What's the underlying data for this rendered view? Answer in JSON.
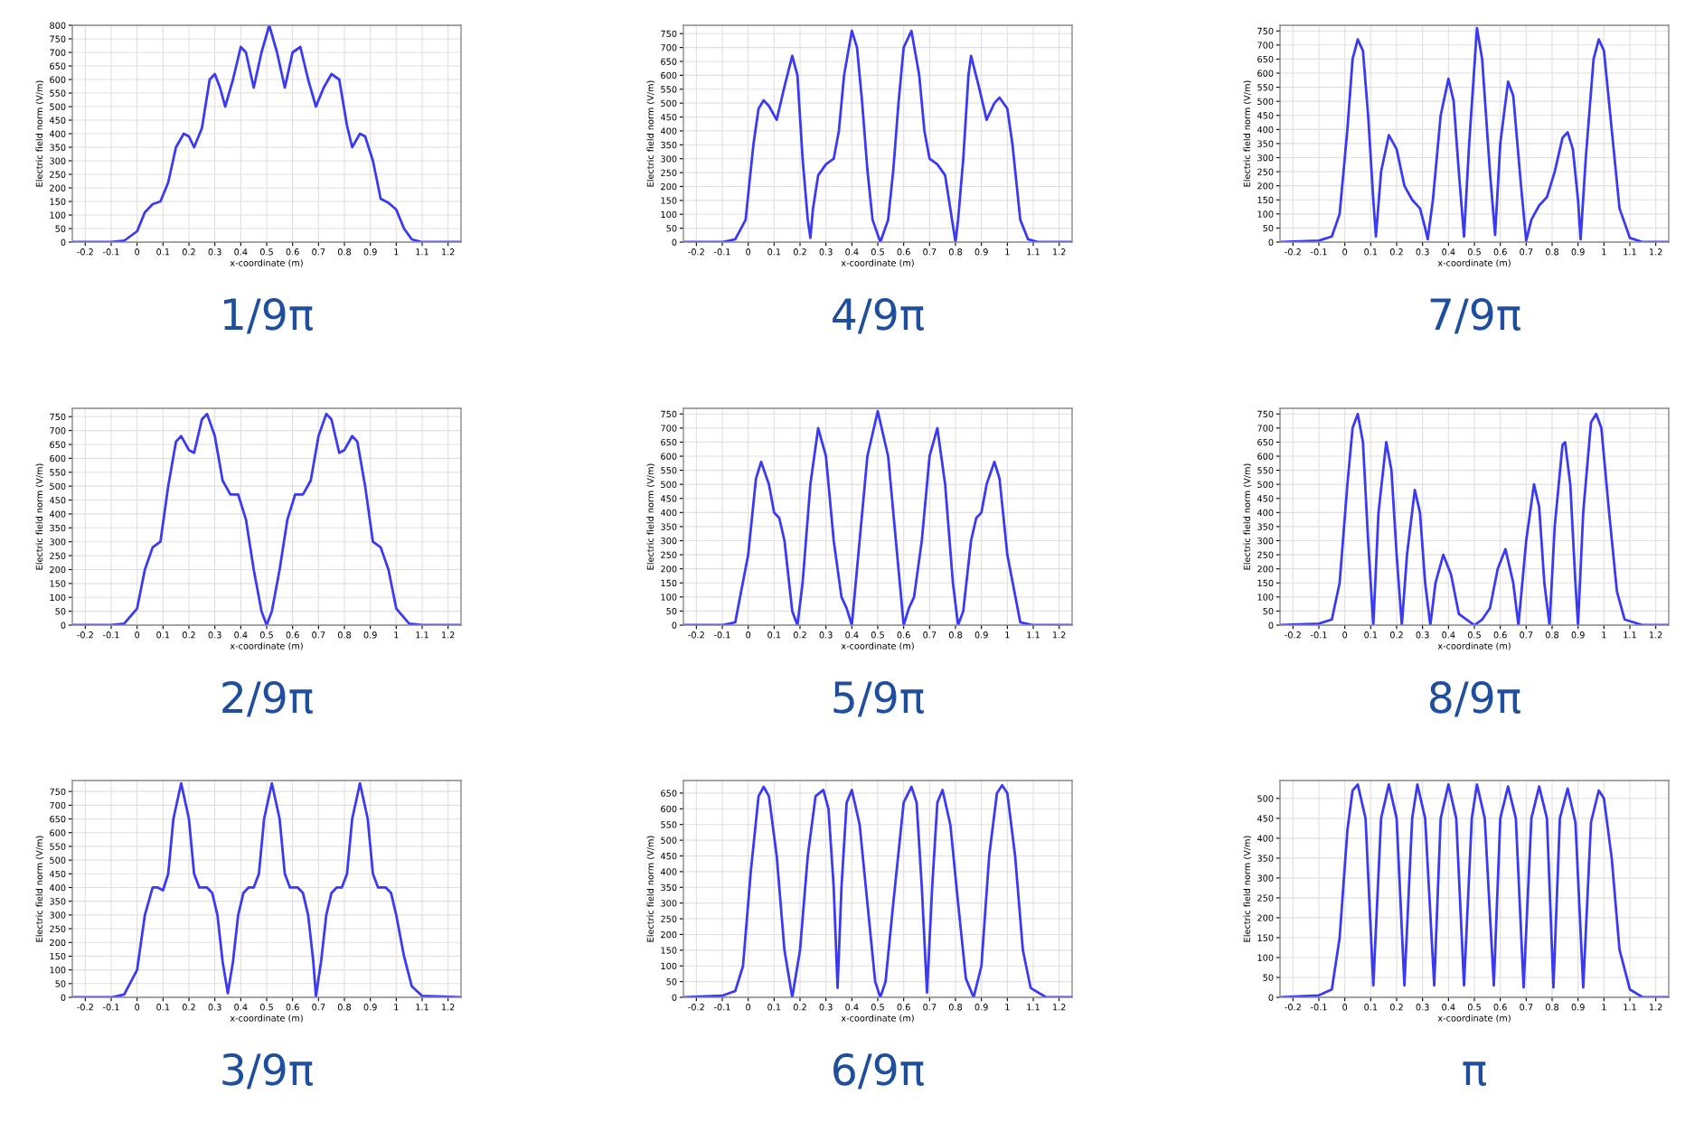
{
  "chart_data": [
    {
      "type": "line",
      "title": "1/9π",
      "xlabel": "x-coordinate (m)",
      "ylabel": "Electric field norm (V/m)",
      "xlim": [
        -0.25,
        1.25
      ],
      "xticks": [
        -0.2,
        -0.1,
        0,
        0.1,
        0.2,
        0.3,
        0.4,
        0.5,
        0.6,
        0.7,
        0.8,
        0.9,
        1,
        1.1,
        1.2
      ],
      "ylim": [
        0,
        800
      ],
      "yticks": [
        0,
        50,
        100,
        150,
        200,
        250,
        300,
        350,
        400,
        450,
        500,
        550,
        600,
        650,
        700,
        750,
        800
      ],
      "grid": true,
      "x": [
        -0.25,
        -0.1,
        -0.05,
        0,
        0.03,
        0.06,
        0.09,
        0.12,
        0.15,
        0.18,
        0.2,
        0.22,
        0.25,
        0.28,
        0.3,
        0.32,
        0.34,
        0.37,
        0.4,
        0.42,
        0.45,
        0.48,
        0.51,
        0.54,
        0.57,
        0.6,
        0.63,
        0.66,
        0.69,
        0.72,
        0.75,
        0.78,
        0.81,
        0.83,
        0.86,
        0.88,
        0.91,
        0.94,
        0.97,
        1.0,
        1.03,
        1.06,
        1.1,
        1.25
      ],
      "series": [
        {
          "color": "#3a3af5",
          "values": [
            0,
            0,
            5,
            40,
            110,
            140,
            150,
            220,
            350,
            400,
            390,
            350,
            420,
            600,
            620,
            570,
            500,
            600,
            720,
            700,
            570,
            700,
            800,
            700,
            570,
            700,
            720,
            600,
            500,
            570,
            620,
            600,
            430,
            350,
            400,
            390,
            300,
            160,
            145,
            120,
            50,
            10,
            0,
            0
          ]
        }
      ]
    },
    {
      "type": "line",
      "title": "4/9π",
      "xlabel": "x-coordinate (m)",
      "ylabel": "Electric field norm (V/m)",
      "xlim": [
        -0.25,
        1.25
      ],
      "xticks": [
        -0.2,
        -0.1,
        0,
        0.1,
        0.2,
        0.3,
        0.4,
        0.5,
        0.6,
        0.7,
        0.8,
        0.9,
        1,
        1.1,
        1.2
      ],
      "ylim": [
        0,
        780
      ],
      "yticks": [
        0,
        50,
        100,
        150,
        200,
        250,
        300,
        350,
        400,
        450,
        500,
        550,
        600,
        650,
        700,
        750
      ],
      "grid": true,
      "x": [
        -0.25,
        -0.1,
        -0.05,
        -0.01,
        0.02,
        0.04,
        0.06,
        0.08,
        0.11,
        0.14,
        0.17,
        0.19,
        0.21,
        0.23,
        0.24,
        0.25,
        0.27,
        0.3,
        0.33,
        0.35,
        0.37,
        0.4,
        0.42,
        0.44,
        0.46,
        0.48,
        0.51,
        0.54,
        0.56,
        0.58,
        0.6,
        0.63,
        0.66,
        0.68,
        0.7,
        0.73,
        0.76,
        0.78,
        0.8,
        0.81,
        0.83,
        0.85,
        0.86,
        0.89,
        0.92,
        0.95,
        0.97,
        1.0,
        1.02,
        1.05,
        1.08,
        1.12,
        1.25
      ],
      "series": [
        {
          "color": "#3a3af5",
          "values": [
            0,
            0,
            10,
            80,
            350,
            480,
            510,
            490,
            440,
            560,
            670,
            600,
            300,
            80,
            15,
            120,
            240,
            280,
            300,
            400,
            600,
            760,
            700,
            500,
            260,
            80,
            0,
            80,
            260,
            500,
            700,
            760,
            600,
            400,
            300,
            280,
            240,
            120,
            0,
            80,
            300,
            600,
            670,
            560,
            440,
            500,
            520,
            480,
            350,
            80,
            10,
            0,
            0
          ]
        }
      ]
    },
    {
      "type": "line",
      "title": "7/9π",
      "xlabel": "x-coordinate (m)",
      "ylabel": "Electric field norm (V/m)",
      "xlim": [
        -0.25,
        1.25
      ],
      "xticks": [
        -0.2,
        -0.1,
        0,
        0.1,
        0.2,
        0.3,
        0.4,
        0.5,
        0.6,
        0.7,
        0.8,
        0.9,
        1,
        1.1,
        1.2
      ],
      "ylim": [
        0,
        770
      ],
      "yticks": [
        0,
        50,
        100,
        150,
        200,
        250,
        300,
        350,
        400,
        450,
        500,
        550,
        600,
        650,
        700,
        750
      ],
      "grid": true,
      "x": [
        -0.25,
        -0.1,
        -0.05,
        -0.02,
        0.01,
        0.03,
        0.05,
        0.07,
        0.09,
        0.11,
        0.12,
        0.14,
        0.17,
        0.2,
        0.23,
        0.26,
        0.29,
        0.31,
        0.32,
        0.34,
        0.37,
        0.4,
        0.42,
        0.44,
        0.46,
        0.48,
        0.51,
        0.53,
        0.56,
        0.58,
        0.6,
        0.63,
        0.65,
        0.68,
        0.7,
        0.72,
        0.75,
        0.78,
        0.81,
        0.84,
        0.86,
        0.88,
        0.9,
        0.91,
        0.93,
        0.96,
        0.98,
        1.0,
        1.03,
        1.06,
        1.1,
        1.15,
        1.25
      ],
      "series": [
        {
          "color": "#3a3af5",
          "values": [
            0,
            5,
            20,
            100,
            400,
            650,
            720,
            680,
            450,
            150,
            20,
            250,
            380,
            330,
            200,
            150,
            120,
            50,
            10,
            150,
            450,
            580,
            500,
            250,
            20,
            350,
            760,
            650,
            250,
            25,
            350,
            570,
            520,
            200,
            5,
            80,
            130,
            160,
            250,
            370,
            390,
            330,
            150,
            10,
            300,
            650,
            720,
            680,
            400,
            120,
            15,
            0,
            0
          ]
        }
      ]
    },
    {
      "type": "line",
      "title": "2/9π",
      "xlabel": "x-coordinate (m)",
      "ylabel": "Electric field norm (V/m)",
      "xlim": [
        -0.25,
        1.25
      ],
      "xticks": [
        -0.2,
        -0.1,
        0,
        0.1,
        0.2,
        0.3,
        0.4,
        0.5,
        0.6,
        0.7,
        0.8,
        0.9,
        1,
        1.1,
        1.2
      ],
      "ylim": [
        0,
        780
      ],
      "yticks": [
        0,
        50,
        100,
        150,
        200,
        250,
        300,
        350,
        400,
        450,
        500,
        550,
        600,
        650,
        700,
        750
      ],
      "grid": true,
      "x": [
        -0.25,
        -0.1,
        -0.05,
        0,
        0.03,
        0.06,
        0.09,
        0.12,
        0.15,
        0.17,
        0.2,
        0.22,
        0.25,
        0.27,
        0.3,
        0.33,
        0.36,
        0.39,
        0.42,
        0.45,
        0.48,
        0.5,
        0.52,
        0.55,
        0.58,
        0.61,
        0.64,
        0.67,
        0.7,
        0.73,
        0.75,
        0.78,
        0.8,
        0.83,
        0.85,
        0.88,
        0.91,
        0.94,
        0.97,
        1.0,
        1.05,
        1.1,
        1.25
      ],
      "series": [
        {
          "color": "#3a3af5",
          "values": [
            0,
            0,
            5,
            60,
            200,
            280,
            300,
            500,
            660,
            680,
            630,
            620,
            740,
            760,
            680,
            520,
            470,
            470,
            380,
            200,
            50,
            0,
            50,
            200,
            380,
            470,
            470,
            520,
            680,
            760,
            740,
            620,
            630,
            680,
            660,
            500,
            300,
            280,
            200,
            60,
            5,
            0,
            0
          ]
        }
      ]
    },
    {
      "type": "line",
      "title": "5/9π",
      "xlabel": "x-coordinate (m)",
      "ylabel": "Electric field norm (V/m)",
      "xlim": [
        -0.25,
        1.25
      ],
      "xticks": [
        -0.2,
        -0.1,
        0,
        0.1,
        0.2,
        0.3,
        0.4,
        0.5,
        0.6,
        0.7,
        0.8,
        0.9,
        1,
        1.1,
        1.2
      ],
      "ylim": [
        0,
        770
      ],
      "yticks": [
        0,
        50,
        100,
        150,
        200,
        250,
        300,
        350,
        400,
        450,
        500,
        550,
        600,
        650,
        700,
        750
      ],
      "grid": true,
      "x": [
        -0.25,
        -0.1,
        -0.05,
        0,
        0.03,
        0.05,
        0.08,
        0.1,
        0.12,
        0.14,
        0.17,
        0.19,
        0.21,
        0.24,
        0.27,
        0.3,
        0.33,
        0.36,
        0.38,
        0.4,
        0.42,
        0.46,
        0.5,
        0.54,
        0.58,
        0.6,
        0.62,
        0.64,
        0.67,
        0.7,
        0.73,
        0.76,
        0.79,
        0.81,
        0.83,
        0.86,
        0.88,
        0.9,
        0.92,
        0.95,
        0.97,
        1.0,
        1.05,
        1.1,
        1.25
      ],
      "series": [
        {
          "color": "#3a3af5",
          "values": [
            0,
            0,
            10,
            250,
            520,
            580,
            500,
            400,
            380,
            300,
            50,
            0,
            150,
            500,
            700,
            600,
            300,
            100,
            60,
            0,
            200,
            600,
            760,
            600,
            200,
            0,
            60,
            100,
            300,
            600,
            700,
            500,
            150,
            0,
            50,
            300,
            380,
            400,
            500,
            580,
            520,
            250,
            10,
            0,
            0
          ]
        }
      ]
    },
    {
      "type": "line",
      "title": "8/9π",
      "xlabel": "x-coordinate (m)",
      "ylabel": "Electric field norm (V/m)",
      "xlim": [
        -0.25,
        1.25
      ],
      "xticks": [
        -0.2,
        -0.1,
        0,
        0.1,
        0.2,
        0.3,
        0.4,
        0.5,
        0.6,
        0.7,
        0.8,
        0.9,
        1,
        1.1,
        1.2
      ],
      "ylim": [
        0,
        770
      ],
      "yticks": [
        0,
        50,
        100,
        150,
        200,
        250,
        300,
        350,
        400,
        450,
        500,
        550,
        600,
        650,
        700,
        750
      ],
      "grid": true,
      "x": [
        -0.25,
        -0.1,
        -0.05,
        -0.02,
        0.01,
        0.03,
        0.05,
        0.07,
        0.09,
        0.11,
        0.13,
        0.16,
        0.18,
        0.2,
        0.22,
        0.24,
        0.27,
        0.29,
        0.31,
        0.33,
        0.35,
        0.38,
        0.41,
        0.44,
        0.47,
        0.5,
        0.53,
        0.56,
        0.59,
        0.62,
        0.65,
        0.67,
        0.7,
        0.73,
        0.75,
        0.77,
        0.79,
        0.81,
        0.84,
        0.85,
        0.87,
        0.89,
        0.9,
        0.92,
        0.95,
        0.97,
        0.99,
        1.02,
        1.05,
        1.08,
        1.15,
        1.25
      ],
      "series": [
        {
          "color": "#3a3af5",
          "values": [
            0,
            5,
            20,
            150,
            500,
            700,
            750,
            650,
            300,
            0,
            400,
            650,
            550,
            250,
            0,
            250,
            480,
            400,
            150,
            0,
            150,
            250,
            180,
            40,
            20,
            0,
            20,
            60,
            200,
            270,
            150,
            0,
            300,
            500,
            420,
            150,
            0,
            350,
            640,
            650,
            500,
            150,
            0,
            400,
            720,
            750,
            700,
            400,
            120,
            20,
            0,
            0
          ]
        }
      ]
    },
    {
      "type": "line",
      "title": "3/9π",
      "xlabel": "x-coordinate (m)",
      "ylabel": "Electric field norm (V/m)",
      "xlim": [
        -0.25,
        1.25
      ],
      "xticks": [
        -0.2,
        -0.1,
        0,
        0.1,
        0.2,
        0.3,
        0.4,
        0.5,
        0.6,
        0.7,
        0.8,
        0.9,
        1,
        1.1,
        1.2
      ],
      "ylim": [
        0,
        790
      ],
      "yticks": [
        0,
        50,
        100,
        150,
        200,
        250,
        300,
        350,
        400,
        450,
        500,
        550,
        600,
        650,
        700,
        750
      ],
      "grid": true,
      "x": [
        -0.25,
        -0.1,
        -0.05,
        0,
        0.03,
        0.06,
        0.08,
        0.1,
        0.12,
        0.14,
        0.17,
        0.2,
        0.22,
        0.24,
        0.27,
        0.29,
        0.31,
        0.33,
        0.35,
        0.37,
        0.39,
        0.41,
        0.43,
        0.45,
        0.47,
        0.49,
        0.52,
        0.55,
        0.57,
        0.59,
        0.62,
        0.64,
        0.66,
        0.68,
        0.69,
        0.71,
        0.73,
        0.75,
        0.77,
        0.79,
        0.81,
        0.83,
        0.86,
        0.89,
        0.91,
        0.93,
        0.96,
        0.98,
        1.0,
        1.03,
        1.06,
        1.1,
        1.25
      ],
      "series": [
        {
          "color": "#3a3af5",
          "values": [
            0,
            0,
            10,
            100,
            300,
            400,
            400,
            390,
            450,
            650,
            780,
            650,
            450,
            400,
            400,
            380,
            300,
            130,
            15,
            130,
            300,
            380,
            400,
            400,
            450,
            650,
            780,
            650,
            450,
            400,
            400,
            380,
            300,
            130,
            5,
            130,
            300,
            380,
            400,
            400,
            450,
            650,
            780,
            650,
            450,
            400,
            400,
            380,
            300,
            150,
            40,
            5,
            0
          ]
        }
      ]
    },
    {
      "type": "line",
      "title": "6/9π",
      "xlabel": "x-coordinate (m)",
      "ylabel": "Electric field norm (V/m)",
      "xlim": [
        -0.25,
        1.25
      ],
      "xticks": [
        -0.2,
        -0.1,
        0,
        0.1,
        0.2,
        0.3,
        0.4,
        0.5,
        0.6,
        0.7,
        0.8,
        0.9,
        1,
        1.1,
        1.2
      ],
      "ylim": [
        0,
        690
      ],
      "yticks": [
        0,
        50,
        100,
        150,
        200,
        250,
        300,
        350,
        400,
        450,
        500,
        550,
        600,
        650
      ],
      "grid": true,
      "x": [
        -0.25,
        -0.1,
        -0.05,
        -0.02,
        0.01,
        0.04,
        0.06,
        0.08,
        0.11,
        0.14,
        0.17,
        0.2,
        0.23,
        0.26,
        0.29,
        0.31,
        0.33,
        0.345,
        0.36,
        0.38,
        0.4,
        0.43,
        0.46,
        0.49,
        0.51,
        0.53,
        0.56,
        0.6,
        0.63,
        0.65,
        0.67,
        0.69,
        0.71,
        0.73,
        0.75,
        0.78,
        0.81,
        0.84,
        0.87,
        0.9,
        0.93,
        0.96,
        0.98,
        1.0,
        1.03,
        1.06,
        1.09,
        1.15,
        1.25
      ],
      "series": [
        {
          "color": "#3a3af5",
          "values": [
            0,
            5,
            20,
            100,
            400,
            640,
            670,
            640,
            450,
            150,
            0,
            150,
            450,
            640,
            660,
            600,
            350,
            30,
            350,
            620,
            660,
            550,
            300,
            50,
            0,
            50,
            300,
            620,
            670,
            620,
            350,
            15,
            350,
            620,
            660,
            550,
            300,
            60,
            0,
            100,
            450,
            650,
            675,
            650,
            450,
            150,
            30,
            0,
            0
          ]
        }
      ]
    },
    {
      "type": "line",
      "title": "π",
      "xlabel": "x-coordinate (m)",
      "ylabel": "Electric field norm (V/m)",
      "xlim": [
        -0.25,
        1.25
      ],
      "xticks": [
        -0.2,
        -0.1,
        0,
        0.1,
        0.2,
        0.3,
        0.4,
        0.5,
        0.6,
        0.7,
        0.8,
        0.9,
        1,
        1.1,
        1.2
      ],
      "ylim": [
        0,
        545
      ],
      "yticks": [
        0,
        50,
        100,
        150,
        200,
        250,
        300,
        350,
        400,
        450,
        500
      ],
      "grid": true,
      "x": [
        -0.25,
        -0.1,
        -0.05,
        -0.02,
        0.01,
        0.03,
        0.05,
        0.08,
        0.11,
        0.14,
        0.17,
        0.2,
        0.23,
        0.26,
        0.28,
        0.31,
        0.345,
        0.37,
        0.4,
        0.43,
        0.46,
        0.49,
        0.51,
        0.54,
        0.575,
        0.6,
        0.63,
        0.66,
        0.69,
        0.72,
        0.75,
        0.78,
        0.805,
        0.83,
        0.86,
        0.89,
        0.92,
        0.95,
        0.98,
        1.0,
        1.03,
        1.06,
        1.1,
        1.15,
        1.25
      ],
      "series": [
        {
          "color": "#3a3af5",
          "values": [
            0,
            5,
            20,
            150,
            420,
            520,
            535,
            450,
            30,
            450,
            535,
            450,
            30,
            450,
            535,
            450,
            30,
            450,
            535,
            450,
            30,
            450,
            535,
            450,
            30,
            450,
            530,
            450,
            25,
            450,
            530,
            450,
            25,
            450,
            525,
            440,
            25,
            440,
            520,
            500,
            350,
            120,
            20,
            0,
            0
          ]
        }
      ]
    }
  ]
}
